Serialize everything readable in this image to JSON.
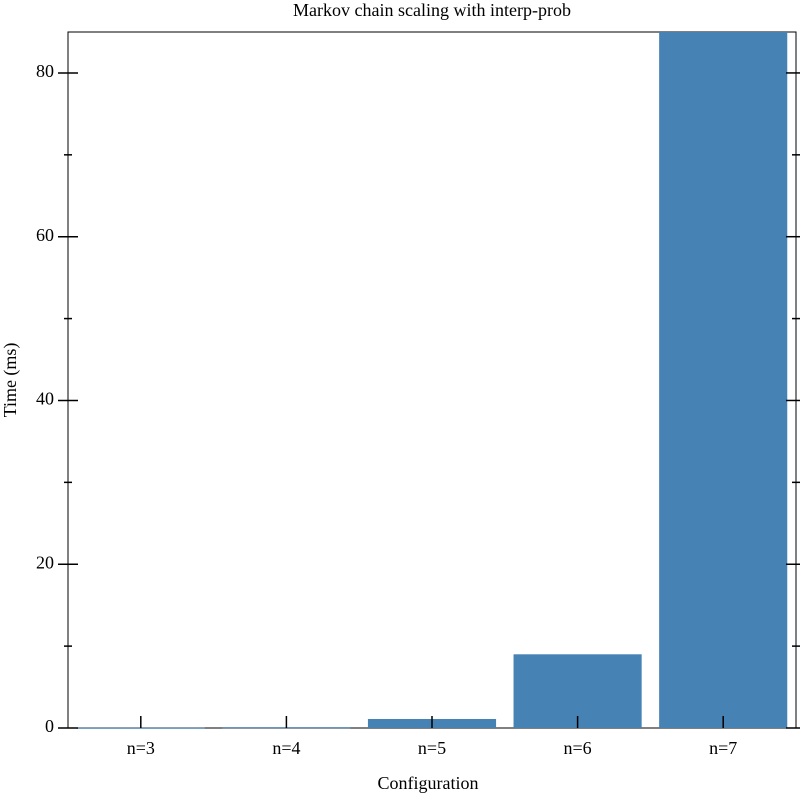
{
  "chart_data": {
    "type": "bar",
    "title": "Markov chain scaling with interp-prob",
    "x_label": "Configuration",
    "y_label": "Time (ms)",
    "categories": [
      "n=3",
      "n=4",
      "n=5",
      "n=6",
      "n=7"
    ],
    "values": [
      0.03,
      0.1,
      1.1,
      9.0,
      85
    ],
    "color": "#4682b4",
    "ylim": [
      0,
      85
    ],
    "yticks": [
      0,
      20,
      40,
      60,
      80
    ],
    "yminorticks": [
      10,
      30,
      50,
      70
    ]
  }
}
